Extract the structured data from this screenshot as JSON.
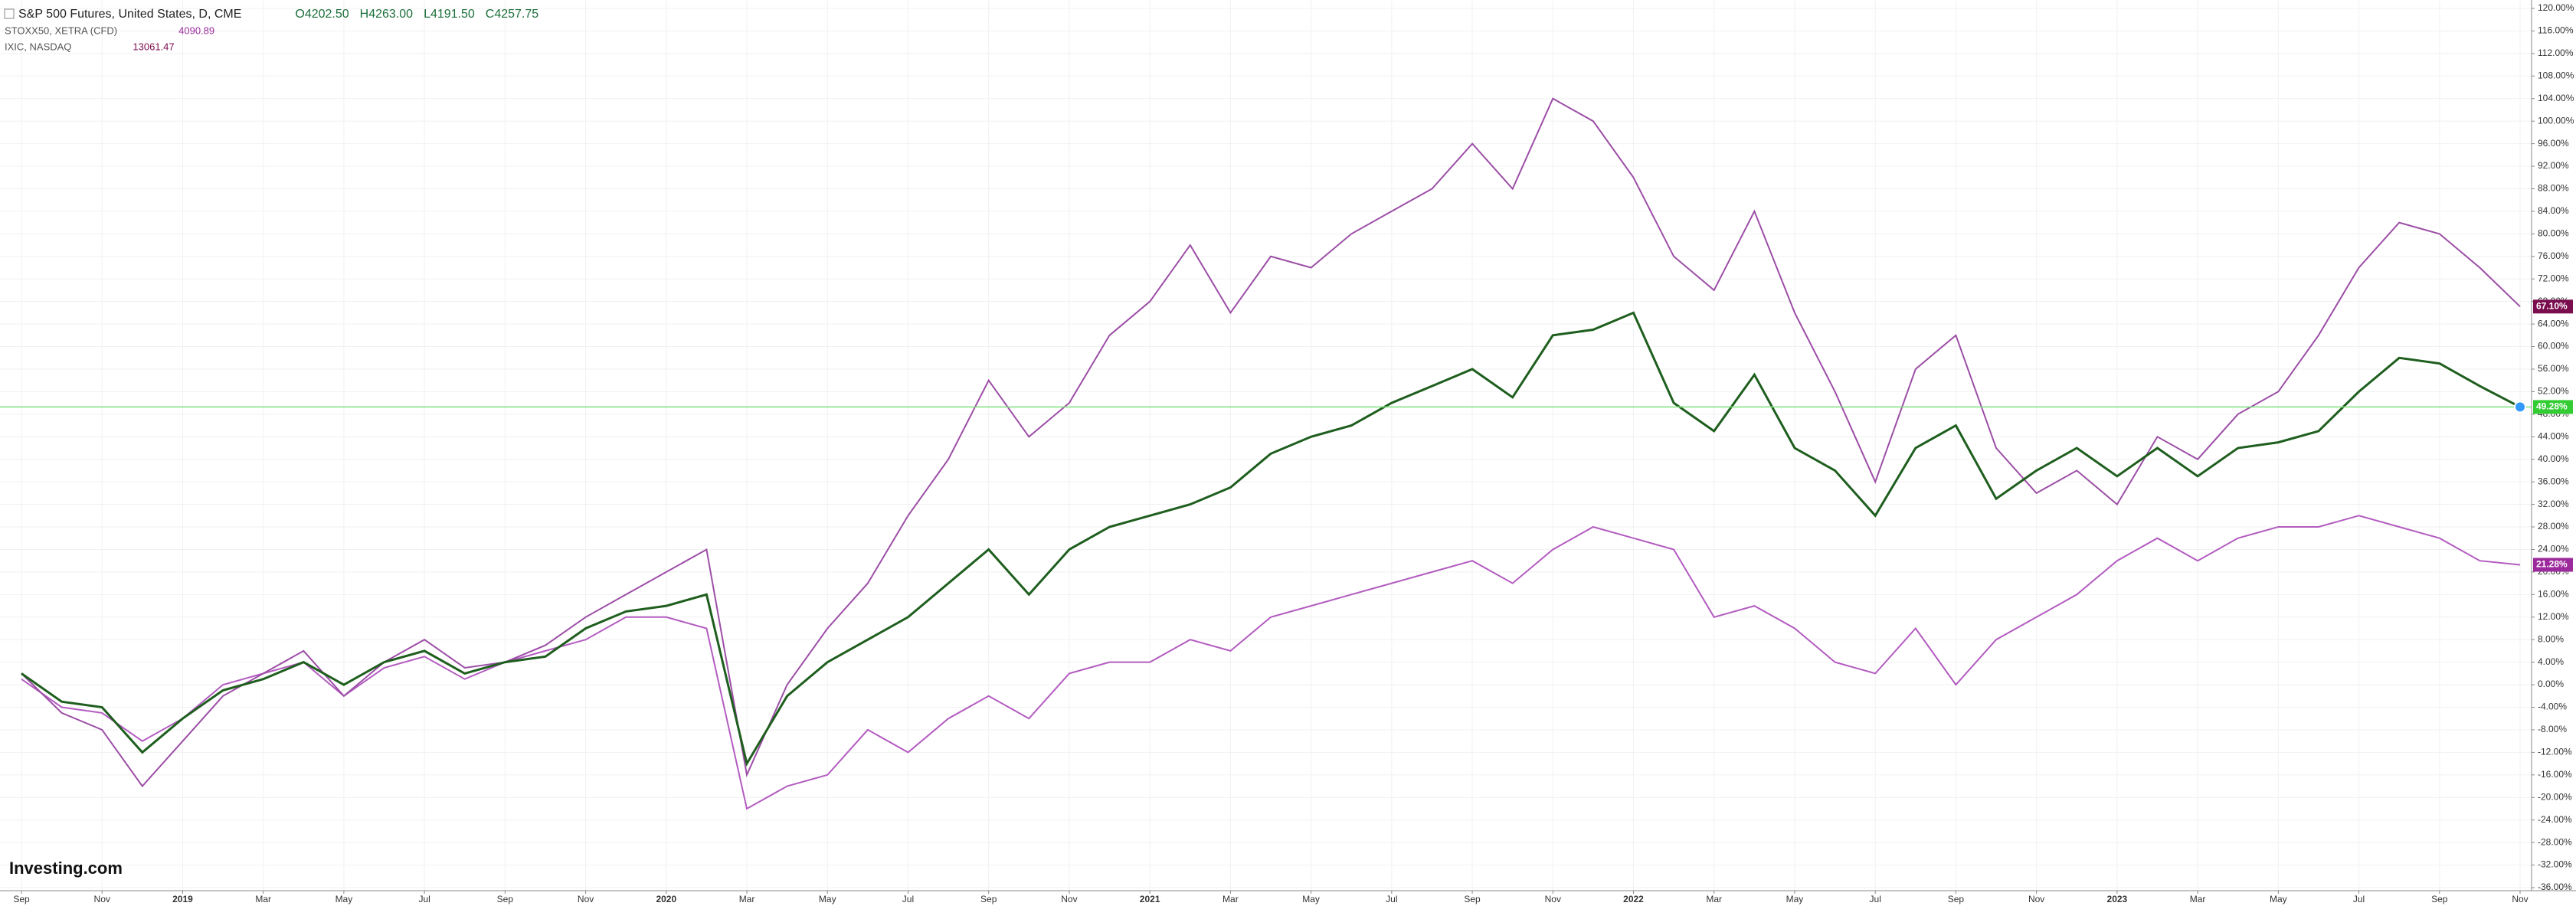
{
  "chart_data": {
    "type": "line",
    "watermark": "Investing.com",
    "x": [
      "2018-09",
      "2018-10",
      "2018-11",
      "2018-12",
      "2019-01",
      "2019-02",
      "2019-03",
      "2019-04",
      "2019-05",
      "2019-06",
      "2019-07",
      "2019-08",
      "2019-09",
      "2019-10",
      "2019-11",
      "2019-12",
      "2020-01",
      "2020-02",
      "2020-03",
      "2020-04",
      "2020-05",
      "2020-06",
      "2020-07",
      "2020-08",
      "2020-09",
      "2020-10",
      "2020-11",
      "2020-12",
      "2021-01",
      "2021-02",
      "2021-03",
      "2021-04",
      "2021-05",
      "2021-06",
      "2021-07",
      "2021-08",
      "2021-09",
      "2021-10",
      "2021-11",
      "2021-12",
      "2022-01",
      "2022-02",
      "2022-03",
      "2022-04",
      "2022-05",
      "2022-06",
      "2022-07",
      "2022-08",
      "2022-09",
      "2022-10",
      "2022-11",
      "2022-12",
      "2023-01",
      "2023-02",
      "2023-03",
      "2023-04",
      "2023-05",
      "2023-06",
      "2023-07",
      "2023-08",
      "2023-09",
      "2023-10",
      "2023-11"
    ],
    "series": [
      {
        "name": "S&P 500 Futures, United States, D, CME",
        "color": "#1e5e1e",
        "ohlc_labels": [
          "O4202.50",
          "H4263.00",
          "L4191.50",
          "C4257.75"
        ],
        "end_label": "49.28%",
        "badge_color": "#33cc33",
        "values": [
          2,
          -3,
          -4,
          -12,
          -6,
          -1,
          1,
          4,
          0,
          4,
          6,
          2,
          4,
          5,
          10,
          13,
          14,
          16,
          -14,
          -2,
          4,
          8,
          12,
          18,
          24,
          16,
          24,
          28,
          30,
          32,
          35,
          41,
          44,
          46,
          50,
          53,
          56,
          51,
          62,
          63,
          66,
          50,
          45,
          55,
          42,
          38,
          30,
          42,
          46,
          33,
          38,
          42,
          37,
          42,
          37,
          42,
          43,
          45,
          52,
          58,
          57,
          53,
          49.28
        ]
      },
      {
        "name": "STOXX50, XETRA (CFD)",
        "last": "4090.89",
        "color": "#b35cc0",
        "end_label": "21.28%",
        "badge_color": "#9c2a9c",
        "values": [
          1,
          -4,
          -5,
          -10,
          -6,
          0,
          2,
          4,
          -2,
          3,
          5,
          1,
          4,
          6,
          8,
          12,
          12,
          10,
          -22,
          -18,
          -16,
          -8,
          -12,
          -6,
          -2,
          -6,
          2,
          4,
          4,
          8,
          6,
          12,
          14,
          16,
          18,
          20,
          22,
          18,
          24,
          28,
          26,
          24,
          12,
          14,
          10,
          4,
          2,
          10,
          0,
          8,
          12,
          16,
          22,
          26,
          22,
          26,
          28,
          28,
          30,
          28,
          26,
          22,
          21.28
        ]
      },
      {
        "name": "IXIC, NASDAQ",
        "last": "13061.47",
        "color": "#9c4ea6",
        "end_label": "67.10%",
        "badge_color": "#7a0d4e",
        "values": [
          2,
          -5,
          -8,
          -18,
          -10,
          -2,
          2,
          6,
          -2,
          4,
          8,
          3,
          4,
          7,
          12,
          16,
          20,
          24,
          -16,
          0,
          10,
          18,
          30,
          40,
          54,
          44,
          50,
          62,
          68,
          78,
          66,
          76,
          74,
          80,
          84,
          88,
          96,
          88,
          104,
          100,
          90,
          76,
          70,
          84,
          66,
          52,
          36,
          56,
          62,
          42,
          34,
          38,
          32,
          44,
          40,
          48,
          52,
          62,
          74,
          82,
          80,
          74,
          67.1
        ]
      }
    ],
    "xticks": [
      {
        "value": "2018-09",
        "label": "Sep"
      },
      {
        "value": "2018-11",
        "label": "Nov"
      },
      {
        "value": "2019-01",
        "label": "2019"
      },
      {
        "value": "2019-03",
        "label": "Mar"
      },
      {
        "value": "2019-05",
        "label": "May"
      },
      {
        "value": "2019-07",
        "label": "Jul"
      },
      {
        "value": "2019-09",
        "label": "Sep"
      },
      {
        "value": "2019-11",
        "label": "Nov"
      },
      {
        "value": "2020-01",
        "label": "2020"
      },
      {
        "value": "2020-03",
        "label": "Mar"
      },
      {
        "value": "2020-05",
        "label": "May"
      },
      {
        "value": "2020-07",
        "label": "Jul"
      },
      {
        "value": "2020-09",
        "label": "Sep"
      },
      {
        "value": "2020-11",
        "label": "Nov"
      },
      {
        "value": "2021-01",
        "label": "2021"
      },
      {
        "value": "2021-03",
        "label": "Mar"
      },
      {
        "value": "2021-05",
        "label": "May"
      },
      {
        "value": "2021-07",
        "label": "Jul"
      },
      {
        "value": "2021-09",
        "label": "Sep"
      },
      {
        "value": "2021-11",
        "label": "Nov"
      },
      {
        "value": "2022-01",
        "label": "2022"
      },
      {
        "value": "2022-03",
        "label": "Mar"
      },
      {
        "value": "2022-05",
        "label": "May"
      },
      {
        "value": "2022-07",
        "label": "Jul"
      },
      {
        "value": "2022-09",
        "label": "Sep"
      },
      {
        "value": "2022-11",
        "label": "Nov"
      },
      {
        "value": "2023-01",
        "label": "2023"
      },
      {
        "value": "2023-03",
        "label": "Mar"
      },
      {
        "value": "2023-05",
        "label": "May"
      },
      {
        "value": "2023-07",
        "label": "Jul"
      },
      {
        "value": "2023-09",
        "label": "Sep"
      },
      {
        "value": "2023-11",
        "label": "Nov"
      }
    ],
    "ylim": [
      -36,
      120
    ],
    "yticks": [
      {
        "value": 120,
        "label": "120.00%"
      },
      {
        "value": 116,
        "label": "116.00%"
      },
      {
        "value": 112,
        "label": "112.00%"
      },
      {
        "value": 108,
        "label": "108.00%"
      },
      {
        "value": 104,
        "label": "104.00%"
      },
      {
        "value": 100,
        "label": "100.00%"
      },
      {
        "value": 96,
        "label": "96.00%"
      },
      {
        "value": 92,
        "label": "92.00%"
      },
      {
        "value": 88,
        "label": "88.00%"
      },
      {
        "value": 84,
        "label": "84.00%"
      },
      {
        "value": 80,
        "label": "80.00%"
      },
      {
        "value": 76,
        "label": "76.00%"
      },
      {
        "value": 72,
        "label": "72.00%"
      },
      {
        "value": 68,
        "label": "68.00%"
      },
      {
        "value": 64,
        "label": "64.00%"
      },
      {
        "value": 60,
        "label": "60.00%"
      },
      {
        "value": 56,
        "label": "56.00%"
      },
      {
        "value": 52,
        "label": "52.00%"
      },
      {
        "value": 48,
        "label": "48.00%"
      },
      {
        "value": 44,
        "label": "44.00%"
      },
      {
        "value": 40,
        "label": "40.00%"
      },
      {
        "value": 36,
        "label": "36.00%"
      },
      {
        "value": 32,
        "label": "32.00%"
      },
      {
        "value": 28,
        "label": "28.00%"
      },
      {
        "value": 24,
        "label": "24.00%"
      },
      {
        "value": 20,
        "label": "20.00%"
      },
      {
        "value": 16,
        "label": "16.00%"
      },
      {
        "value": 12,
        "label": "12.00%"
      },
      {
        "value": 8,
        "label": "8.00%"
      },
      {
        "value": 4,
        "label": "4.00%"
      },
      {
        "value": 0,
        "label": "0.00%"
      },
      {
        "value": -4,
        "label": "-4.00%"
      },
      {
        "value": -8,
        "label": "-8.00%"
      },
      {
        "value": -12,
        "label": "-12.00%"
      },
      {
        "value": -16,
        "label": "-16.00%"
      },
      {
        "value": -20,
        "label": "-20.00%"
      },
      {
        "value": -24,
        "label": "-24.00%"
      },
      {
        "value": -28,
        "label": "-28.00%"
      },
      {
        "value": -32,
        "label": "-32.00%"
      },
      {
        "value": -36,
        "label": "-36.00%"
      }
    ],
    "grid": true
  }
}
